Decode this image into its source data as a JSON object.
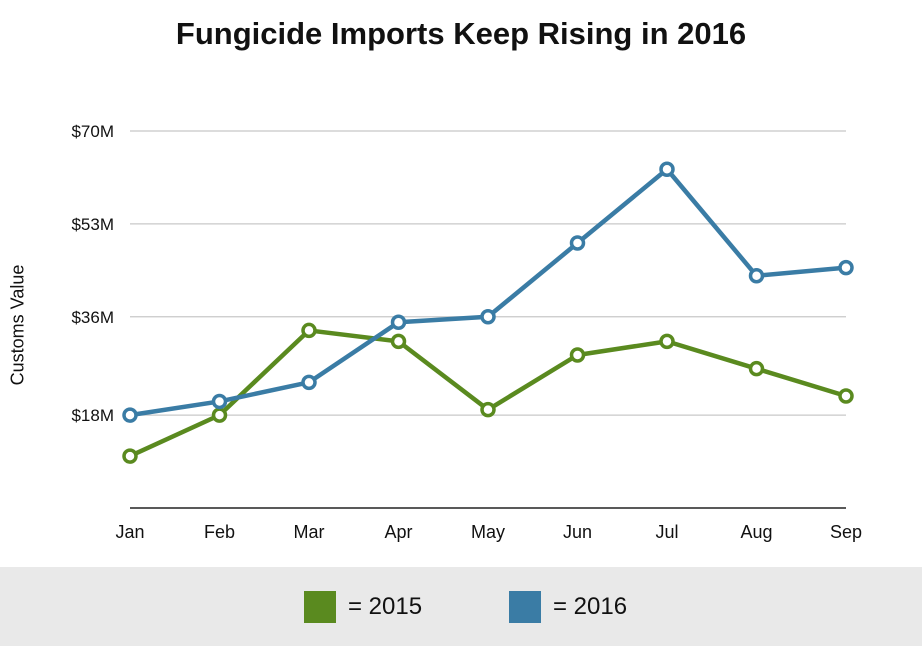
{
  "chart_data": {
    "type": "line",
    "title": "Fungicide Imports Keep Rising in 2016",
    "ylabel": "Customs Value",
    "xlabel": "",
    "categories": [
      "Jan",
      "Feb",
      "Mar",
      "Apr",
      "May",
      "Jun",
      "Jul",
      "Aug",
      "Sep"
    ],
    "yticks": [
      {
        "value": 18,
        "label": "$18M"
      },
      {
        "value": 36,
        "label": "$36M"
      },
      {
        "value": 53,
        "label": "$53M"
      },
      {
        "value": 70,
        "label": "$70M"
      }
    ],
    "ylim": [
      1,
      70
    ],
    "series": [
      {
        "name": "2015",
        "color": "#5a8a1f",
        "values": [
          10.5,
          18,
          33.5,
          31.5,
          19,
          29,
          31.5,
          26.5,
          21.5
        ]
      },
      {
        "name": "2016",
        "color": "#3a7ca5",
        "values": [
          18,
          20.5,
          24,
          35,
          36,
          49.5,
          63,
          43.5,
          45
        ]
      }
    ],
    "grid": true,
    "legend_position": "bottom"
  },
  "legend": {
    "items": [
      {
        "label": "= 2015",
        "color": "#5a8a1f"
      },
      {
        "label": "= 2016",
        "color": "#3a7ca5"
      }
    ]
  }
}
